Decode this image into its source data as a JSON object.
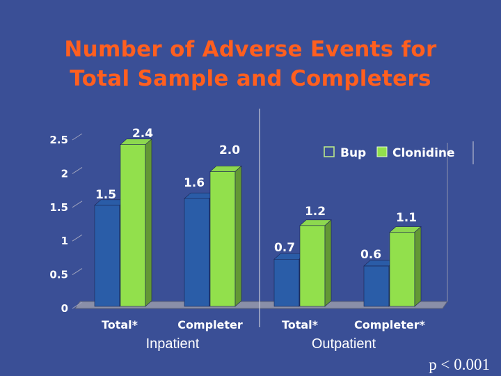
{
  "title_lines": [
    "Number of Adverse Events for",
    "Total Sample and Completers"
  ],
  "footnote": "p < 0.001",
  "colors": {
    "background": "#3a4f96",
    "title": "#ff5f1f",
    "bup": "#2a5da8",
    "clonidine": "#92e04c",
    "text": "#ffffff"
  },
  "chart_data": {
    "type": "bar",
    "title": "Number of Adverse Events for Total Sample and Completers",
    "categories": [
      "Total*",
      "Completer",
      "Total*",
      "Completer*"
    ],
    "groups": [
      {
        "label": "Inpatient",
        "categories": [
          "Total*",
          "Completer"
        ]
      },
      {
        "label": "Outpatient",
        "categories": [
          "Total*",
          "Completer*"
        ]
      }
    ],
    "series": [
      {
        "name": "Bup",
        "values": [
          1.5,
          1.6,
          0.7,
          0.6
        ],
        "labels": [
          "1.5",
          "1.6",
          "0.7",
          "0.6"
        ]
      },
      {
        "name": "Clonidine",
        "values": [
          2.4,
          2.0,
          1.2,
          1.1
        ],
        "labels": [
          "2.4",
          "2.0",
          "1.2",
          "1.1"
        ]
      }
    ],
    "yticks": [
      "0",
      "0.5",
      "1",
      "1.5",
      "2",
      "2.5"
    ],
    "ylim": [
      0,
      2.5
    ],
    "legend": {
      "position": "top-right",
      "entries": [
        "Bup",
        "Clonidine"
      ]
    },
    "grid": false,
    "annotation": "p < 0.001"
  }
}
